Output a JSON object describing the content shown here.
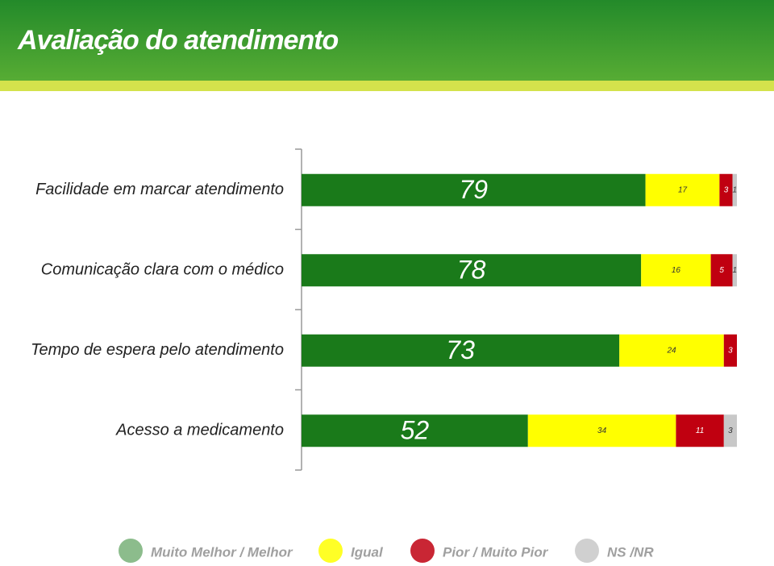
{
  "chart_data": {
    "type": "stacked-bar",
    "title": "Avaliação do atendimento",
    "categories": [
      "Facilidade em marcar atendimento",
      "Comunicação clara com o médico",
      "Tempo de espera pelo atendimento",
      "Acesso a medicamento"
    ],
    "xlim": [
      0,
      100
    ],
    "series": [
      {
        "name": "Muito Melhor / Melhor",
        "color": "#1a7a1a",
        "values": [
          79,
          78,
          73,
          52
        ]
      },
      {
        "name": "Igual",
        "color": "#ffff00",
        "values": [
          17,
          16,
          24,
          34
        ]
      },
      {
        "name": "Pior / Muito Pior",
        "color": "#c00010",
        "values": [
          3,
          5,
          3,
          11
        ]
      },
      {
        "name": "NS /NR",
        "color": "#c8c8c8",
        "values": [
          1,
          1,
          null,
          3
        ]
      }
    ]
  }
}
